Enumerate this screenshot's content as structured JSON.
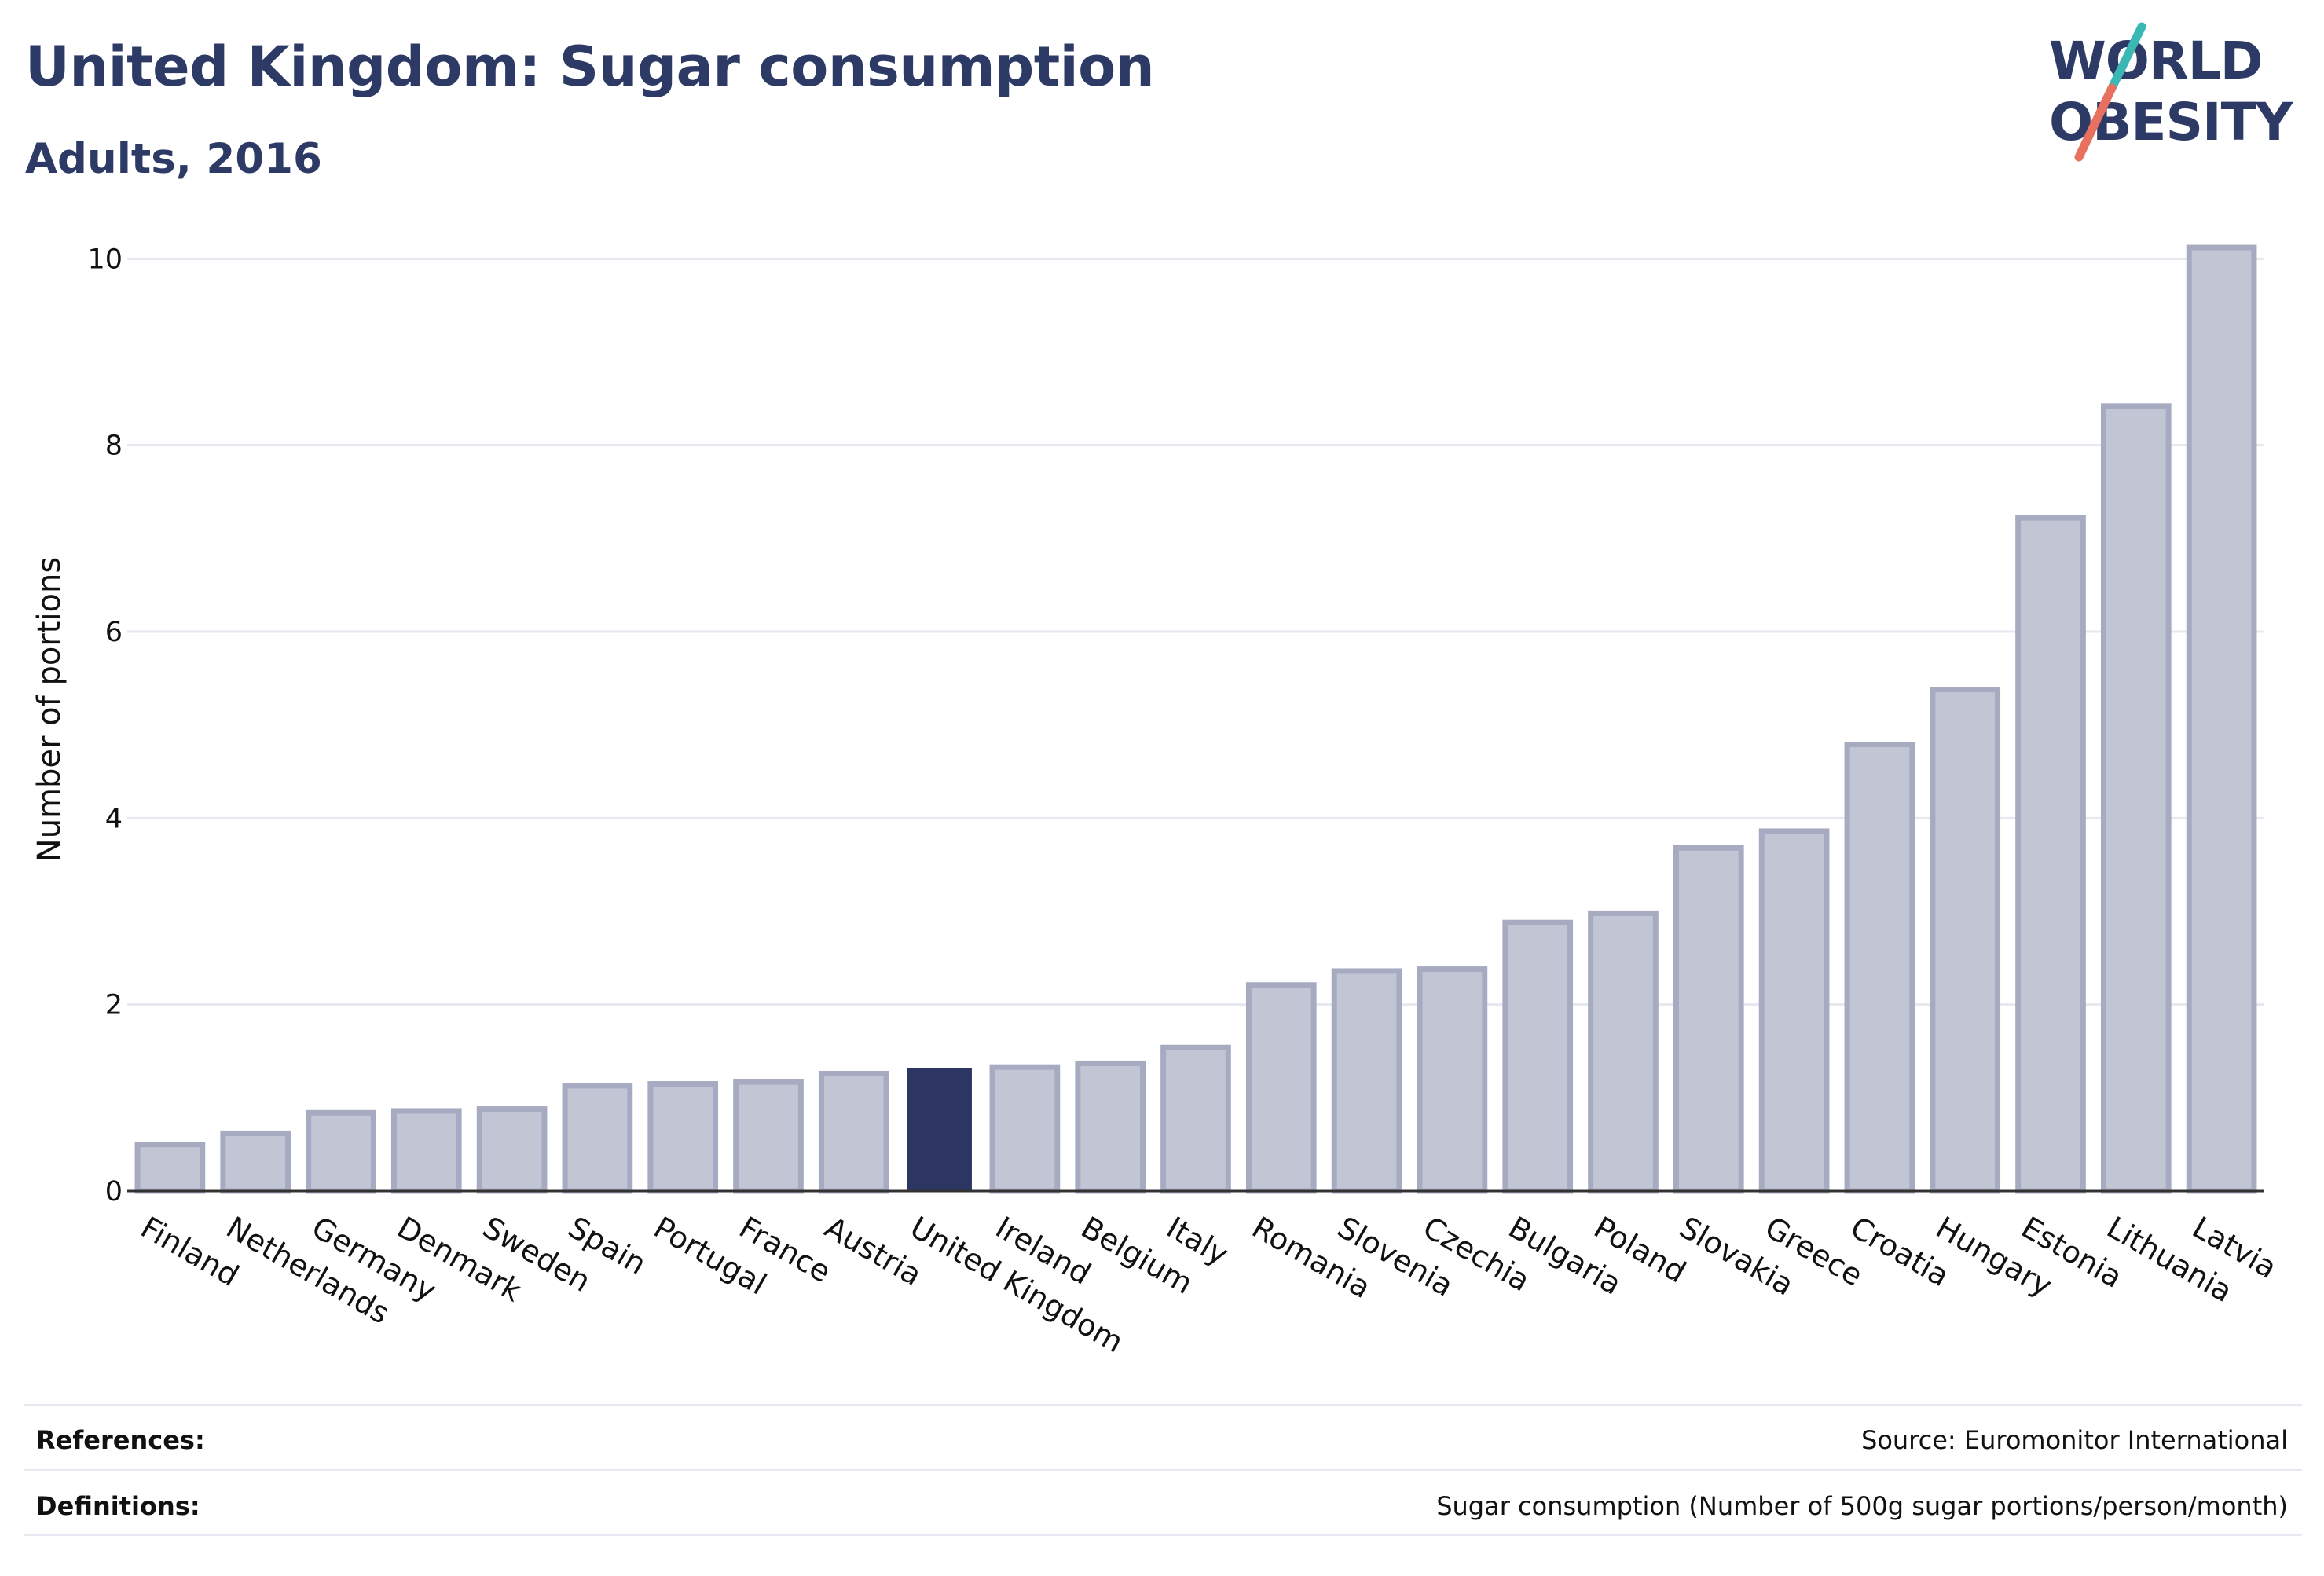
{
  "header": {
    "title": "United Kingdom: Sugar consumption",
    "subtitle": "Adults, 2016"
  },
  "logo": {
    "line1": "WORLD",
    "line2": "OBESITY"
  },
  "footer": {
    "references_label": "References:",
    "references_value": "Source: Euromonitor International",
    "definitions_label": "Definitions:",
    "definitions_value": "Sugar consumption (Number of 500g sugar portions/person/month)"
  },
  "colors": {
    "highlight": "#2d3663",
    "bar_fill": "#c2c5d3",
    "bar_stroke": "#a7abc2",
    "title": "#2d3a66",
    "logo_teal": "#3bb7b4",
    "logo_red": "#e8705f"
  },
  "chart_data": {
    "type": "bar",
    "title": "United Kingdom: Sugar consumption",
    "subtitle": "Adults, 2016",
    "xlabel": "",
    "ylabel": "Number of portions",
    "ylim": [
      0,
      10.5
    ],
    "yticks": [
      0,
      2,
      4,
      6,
      8,
      10
    ],
    "grid": true,
    "highlight_category": "United Kingdom",
    "categories": [
      "Finland",
      "Netherlands",
      "Germany",
      "Denmark",
      "Sweden",
      "Spain",
      "Portugal",
      "France",
      "Austria",
      "United Kingdom",
      "Ireland",
      "Belgium",
      "Italy",
      "Romania",
      "Slovenia",
      "Czechia",
      "Bulgaria",
      "Poland",
      "Slovakia",
      "Greece",
      "Croatia",
      "Hungary",
      "Estonia",
      "Lithuania",
      "Latvia"
    ],
    "values": [
      0.5,
      0.62,
      0.84,
      0.86,
      0.88,
      1.13,
      1.15,
      1.17,
      1.26,
      1.32,
      1.33,
      1.37,
      1.54,
      2.21,
      2.36,
      2.38,
      2.88,
      2.98,
      3.68,
      3.86,
      4.79,
      5.38,
      7.22,
      8.42,
      10.12
    ]
  }
}
